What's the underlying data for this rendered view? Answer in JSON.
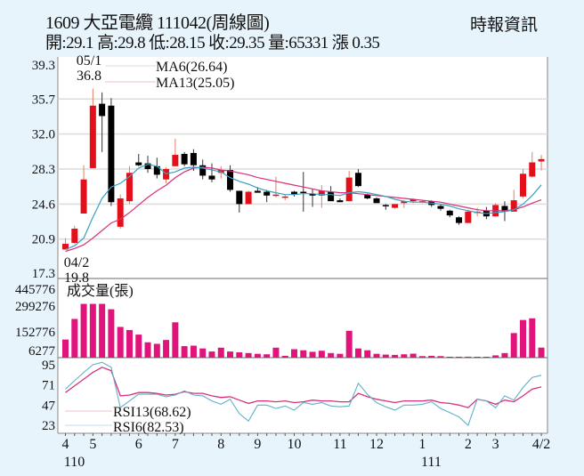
{
  "header": {
    "title": "1609  大亞電纜 111042(周線圖)",
    "quote": "開:29.1 高:29.8 低:28.15 收:29.35 量:65331 漲 0.35",
    "source": "時報資訊"
  },
  "colors": {
    "background": "#e8f4fc",
    "up": "#e3101a",
    "down": "#000000",
    "volume": "#e0147a",
    "ma6": "#3aa0c0",
    "ma13": "#d8307a",
    "rsi13": "#d8307a",
    "rsi6": "#5fb0c8",
    "grid": "#dcdcdc"
  },
  "chart_data": [
    {
      "type": "candlestick",
      "title": "1609 大亞電纜 周線圖",
      "ylabel": "Price",
      "yticks": [
        39.3,
        35.7,
        32.0,
        28.3,
        24.6,
        20.9,
        17.3
      ],
      "ylim": [
        17.3,
        39.3
      ],
      "annotations": [
        {
          "label_date": "05/1",
          "label_value": "36.8",
          "type": "high"
        },
        {
          "label_date": "04/2",
          "label_value": "19.8",
          "type": "low"
        }
      ],
      "legend": [
        {
          "name": "MA6",
          "value": "MA6(26.64)"
        },
        {
          "name": "MA13",
          "value": "MA13(25.05)"
        }
      ],
      "candles": [
        {
          "o": 19.8,
          "h": 21.0,
          "l": 19.8,
          "c": 20.4
        },
        {
          "o": 20.5,
          "h": 22.3,
          "l": 20.4,
          "c": 22.0
        },
        {
          "o": 23.6,
          "h": 28.7,
          "l": 23.6,
          "c": 27.2
        },
        {
          "o": 28.4,
          "h": 36.8,
          "l": 28.4,
          "c": 35.0
        },
        {
          "o": 35.2,
          "h": 36.4,
          "l": 30.1,
          "c": 33.9
        },
        {
          "o": 35.0,
          "h": 35.8,
          "l": 24.4,
          "c": 24.8
        },
        {
          "o": 22.2,
          "h": 25.6,
          "l": 22.0,
          "c": 25.2
        },
        {
          "o": 24.9,
          "h": 28.6,
          "l": 24.6,
          "c": 27.9
        },
        {
          "o": 29.0,
          "h": 29.9,
          "l": 28.6,
          "c": 28.7
        },
        {
          "o": 28.9,
          "h": 29.7,
          "l": 27.9,
          "c": 28.3
        },
        {
          "o": 28.6,
          "h": 29.5,
          "l": 27.3,
          "c": 27.7
        },
        {
          "o": 27.2,
          "h": 28.5,
          "l": 26.8,
          "c": 28.3
        },
        {
          "o": 28.6,
          "h": 31.5,
          "l": 28.6,
          "c": 29.8
        },
        {
          "o": 29.9,
          "h": 30.1,
          "l": 28.6,
          "c": 28.8
        },
        {
          "o": 30.0,
          "h": 30.4,
          "l": 28.1,
          "c": 28.7
        },
        {
          "o": 28.7,
          "h": 29.3,
          "l": 27.2,
          "c": 27.6
        },
        {
          "o": 27.6,
          "h": 28.9,
          "l": 26.9,
          "c": 27.2
        },
        {
          "o": 27.9,
          "h": 28.6,
          "l": 27.3,
          "c": 28.2
        },
        {
          "o": 28.2,
          "h": 28.7,
          "l": 25.9,
          "c": 26.1
        },
        {
          "o": 26.0,
          "h": 26.0,
          "l": 23.7,
          "c": 24.6
        },
        {
          "o": 24.6,
          "h": 26.0,
          "l": 24.6,
          "c": 25.9
        },
        {
          "o": 26.0,
          "h": 26.4,
          "l": 25.8,
          "c": 25.8
        },
        {
          "o": 25.9,
          "h": 26.1,
          "l": 24.8,
          "c": 25.5
        },
        {
          "o": 25.6,
          "h": 27.5,
          "l": 25.3,
          "c": 25.6
        },
        {
          "o": 25.4,
          "h": 25.6,
          "l": 25.0,
          "c": 25.4
        },
        {
          "o": 25.9,
          "h": 26.0,
          "l": 25.4,
          "c": 25.6
        },
        {
          "o": 25.9,
          "h": 28.0,
          "l": 23.8,
          "c": 25.8
        },
        {
          "o": 25.7,
          "h": 26.2,
          "l": 24.3,
          "c": 25.5
        },
        {
          "o": 25.5,
          "h": 26.6,
          "l": 24.2,
          "c": 26.0
        },
        {
          "o": 25.9,
          "h": 26.5,
          "l": 25.1,
          "c": 24.9
        },
        {
          "o": 25.0,
          "h": 25.2,
          "l": 24.8,
          "c": 24.8
        },
        {
          "o": 24.9,
          "h": 28.1,
          "l": 24.9,
          "c": 27.4
        },
        {
          "o": 27.9,
          "h": 28.3,
          "l": 26.4,
          "c": 26.5
        },
        {
          "o": 25.6,
          "h": 25.7,
          "l": 25.1,
          "c": 25.2
        },
        {
          "o": 25.2,
          "h": 25.3,
          "l": 24.7,
          "c": 24.7
        },
        {
          "o": 24.5,
          "h": 24.6,
          "l": 24.0,
          "c": 24.4
        },
        {
          "o": 24.2,
          "h": 24.6,
          "l": 24.1,
          "c": 24.6
        },
        {
          "o": 24.7,
          "h": 25.0,
          "l": 24.2,
          "c": 24.9
        },
        {
          "o": 24.9,
          "h": 25.2,
          "l": 24.7,
          "c": 25.1
        },
        {
          "o": 24.8,
          "h": 25.0,
          "l": 24.7,
          "c": 24.9
        },
        {
          "o": 24.9,
          "h": 25.0,
          "l": 24.3,
          "c": 24.5
        },
        {
          "o": 24.4,
          "h": 24.6,
          "l": 23.9,
          "c": 24.1
        },
        {
          "o": 23.9,
          "h": 24.0,
          "l": 23.2,
          "c": 23.4
        },
        {
          "o": 23.2,
          "h": 23.3,
          "l": 22.4,
          "c": 22.6
        },
        {
          "o": 22.6,
          "h": 24.0,
          "l": 22.6,
          "c": 23.8
        },
        {
          "o": 23.7,
          "h": 24.2,
          "l": 23.3,
          "c": 23.8
        },
        {
          "o": 23.9,
          "h": 24.3,
          "l": 23.0,
          "c": 23.3
        },
        {
          "o": 23.3,
          "h": 24.7,
          "l": 23.3,
          "c": 24.5
        },
        {
          "o": 24.4,
          "h": 24.9,
          "l": 22.8,
          "c": 23.8
        },
        {
          "o": 23.8,
          "h": 26.1,
          "l": 23.8,
          "c": 25.0
        },
        {
          "o": 25.4,
          "h": 28.3,
          "l": 25.2,
          "c": 27.8
        },
        {
          "o": 27.5,
          "h": 30.1,
          "l": 27.4,
          "c": 29.0
        },
        {
          "o": 29.1,
          "h": 29.8,
          "l": 28.15,
          "c": 29.35
        }
      ],
      "ma6": [
        19.8,
        20.2,
        21.0,
        23.2,
        25.2,
        26.4,
        26.8,
        27.5,
        28.4,
        28.8,
        28.6,
        27.8,
        28.0,
        28.4,
        28.5,
        28.4,
        28.2,
        28.0,
        27.4,
        27.0,
        26.7,
        26.3,
        26.0,
        25.8,
        25.6,
        25.6,
        25.7,
        25.7,
        25.6,
        25.6,
        25.5,
        25.8,
        25.9,
        25.8,
        25.6,
        25.4,
        25.1,
        24.9,
        24.8,
        24.8,
        24.7,
        24.6,
        24.4,
        24.1,
        23.9,
        23.7,
        23.6,
        23.7,
        23.8,
        24.0,
        24.6,
        25.5,
        26.64
      ],
      "ma13": [
        19.6,
        19.9,
        20.3,
        21.0,
        21.8,
        22.6,
        23.0,
        23.7,
        24.5,
        25.3,
        26.0,
        26.6,
        27.4,
        28.0,
        28.4,
        28.5,
        28.4,
        28.2,
        28.1,
        27.9,
        27.7,
        27.4,
        27.2,
        27.0,
        26.8,
        26.6,
        26.4,
        26.2,
        26.0,
        25.9,
        25.8,
        25.8,
        25.7,
        25.6,
        25.5,
        25.4,
        25.3,
        25.2,
        25.1,
        25.0,
        24.9,
        24.8,
        24.6,
        24.4,
        24.2,
        24.0,
        23.9,
        23.9,
        23.9,
        24.0,
        24.3,
        24.7,
        25.05
      ]
    },
    {
      "type": "bar",
      "title": "成交量(張)",
      "yticks": [
        445776,
        299276,
        152776,
        6277
      ],
      "values": [
        118000,
        252000,
        350000,
        350000,
        350000,
        315000,
        200000,
        180000,
        150000,
        100000,
        90000,
        115000,
        230000,
        75000,
        78000,
        60000,
        40000,
        65000,
        40000,
        35000,
        30000,
        25000,
        22000,
        65000,
        12000,
        55000,
        48000,
        38000,
        45000,
        30000,
        25000,
        175000,
        60000,
        48000,
        25000,
        20000,
        18000,
        22000,
        26000,
        10000,
        12000,
        10000,
        6000,
        6000,
        6277,
        6000,
        6000,
        15000,
        30000,
        160000,
        245000,
        256000,
        65331
      ]
    },
    {
      "type": "line",
      "title": "RSI",
      "yticks": [
        95,
        71,
        47,
        23
      ],
      "ylim": [
        20,
        100
      ],
      "legend": [
        {
          "name": "RSI13",
          "value": "RSI13(68.62)"
        },
        {
          "name": "RSI6",
          "value": "RSI6(82.53)"
        }
      ],
      "rsi13": [
        62,
        70,
        78,
        86,
        92,
        88,
        58,
        59,
        62,
        62,
        61,
        59,
        60,
        63,
        61,
        61,
        58,
        56,
        57,
        53,
        49,
        52,
        52,
        51,
        52,
        50,
        51,
        53,
        52,
        52,
        51,
        51,
        61,
        57,
        54,
        52,
        50,
        52,
        52,
        52,
        53,
        50,
        49,
        47,
        44,
        54,
        52,
        48,
        53,
        51,
        58,
        66,
        68.62
      ],
      "rsi6": [
        66,
        76,
        86,
        95,
        98,
        92,
        44,
        52,
        60,
        60,
        60,
        57,
        59,
        64,
        59,
        58,
        52,
        48,
        54,
        37,
        28,
        47,
        47,
        43,
        46,
        41,
        50,
        48,
        50,
        46,
        45,
        46,
        73,
        60,
        50,
        45,
        41,
        47,
        47,
        48,
        51,
        43,
        38,
        33,
        23,
        54,
        52,
        44,
        58,
        53,
        68,
        80,
        82.53
      ]
    }
  ],
  "axes": {
    "x_months": [
      {
        "label": "4",
        "idx": 0
      },
      {
        "label": "5",
        "idx": 3
      },
      {
        "label": "6",
        "idx": 8
      },
      {
        "label": "7",
        "idx": 12
      },
      {
        "label": "8",
        "idx": 17
      },
      {
        "label": "9",
        "idx": 21
      },
      {
        "label": "10",
        "idx": 25
      },
      {
        "label": "11",
        "idx": 30
      },
      {
        "label": "12",
        "idx": 34
      },
      {
        "label": "1",
        "idx": 39
      },
      {
        "label": "2",
        "idx": 44
      },
      {
        "label": "3",
        "idx": 47
      },
      {
        "label": "4/2",
        "idx": 52
      }
    ],
    "x_years": [
      {
        "label": "110",
        "idx": 0
      },
      {
        "label": "111",
        "idx": 39
      }
    ],
    "price_ticks": [
      "39.3",
      "35.7",
      "32.0",
      "28.3",
      "24.6",
      "20.9",
      "17.3"
    ],
    "volume_ticks": [
      "445776",
      "299276",
      "152776",
      "6277"
    ],
    "rsi_ticks": [
      "95",
      "71",
      "47",
      "23"
    ]
  }
}
